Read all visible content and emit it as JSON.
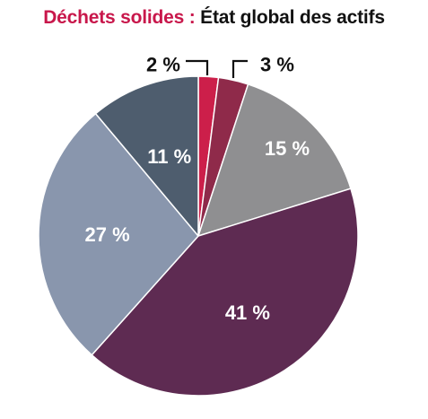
{
  "title": {
    "part1": "Déchets solides :",
    "part2": "État global des actifs"
  },
  "colors": {
    "title_accent": "#c8174b",
    "title_main": "#111111"
  },
  "chart_data": {
    "type": "pie",
    "title": "Déchets solides : État global des actifs",
    "start_angle": 0,
    "direction": "clockwise",
    "slices": [
      {
        "value": 2,
        "label": "2 %",
        "color": "#cc1f4a",
        "label_color": "#111111",
        "label_position": "outside"
      },
      {
        "value": 3,
        "label": "3 %",
        "color": "#8f2a4a",
        "label_color": "#111111",
        "label_position": "outside"
      },
      {
        "value": 15,
        "label": "15 %",
        "color": "#8f8f91",
        "label_color": "#ffffff",
        "label_position": "inside"
      },
      {
        "value": 41,
        "label": "41 %",
        "color": "#5e2b52",
        "label_color": "#ffffff",
        "label_position": "inside"
      },
      {
        "value": 27,
        "label": "27 %",
        "color": "#8996ad",
        "label_color": "#ffffff",
        "label_position": "inside"
      },
      {
        "value": 11,
        "label": "11 %",
        "color": "#4e5d6e",
        "label_color": "#ffffff",
        "label_position": "inside"
      }
    ]
  }
}
